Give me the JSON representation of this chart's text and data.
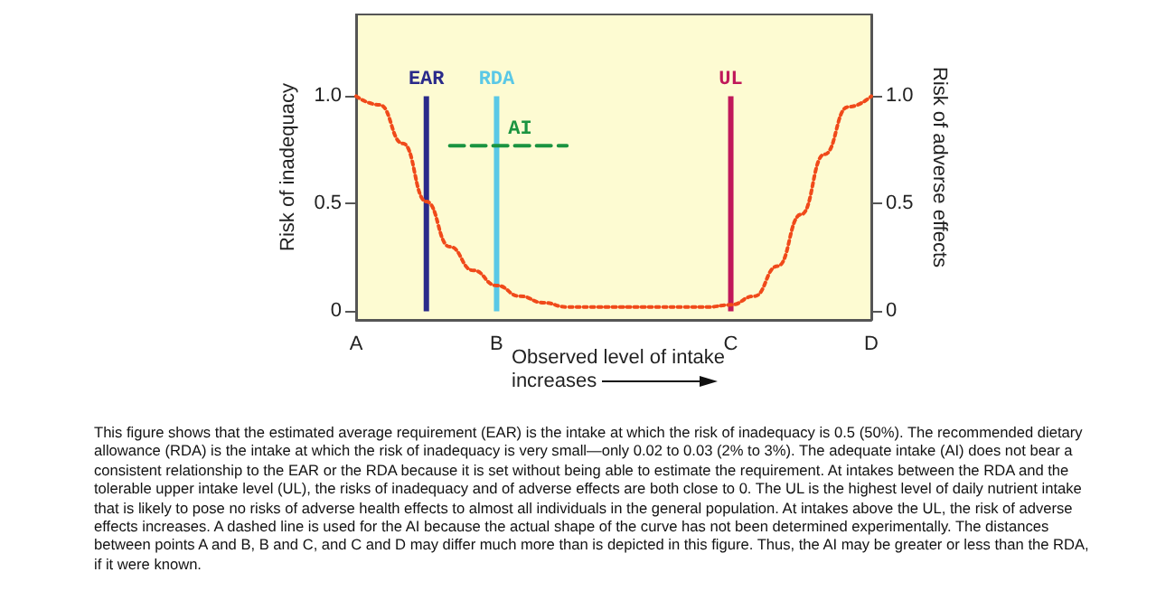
{
  "chart_data": {
    "type": "line",
    "xlabel": "Observed level of intake increases",
    "ylabel": "Risk of inadequacy",
    "y2label": "Risk of adverse effects",
    "categories": [
      "A",
      null,
      null,
      null,
      null,
      null,
      "B",
      null,
      null,
      null,
      null,
      null,
      null,
      null,
      null,
      null,
      "C",
      null,
      null,
      null,
      null,
      null,
      "D"
    ],
    "ylim": [
      -0.04,
      1.38
    ],
    "yticks": [
      0,
      0.5,
      {
        "value": 1,
        "label": "1.0"
      }
    ],
    "y2lim": [
      -0.04,
      1.38
    ],
    "y2ticks": [
      0,
      0.5,
      {
        "value": 1,
        "label": "1.0"
      }
    ],
    "grid": false,
    "marker": "none",
    "series": [
      {
        "color": "#f04a1a",
        "line_style": "dotted",
        "values": [
          1,
          0.96,
          0.78,
          0.51,
          0.3,
          0.19,
          0.12,
          0.07,
          0.04,
          0.02,
          0.02,
          0.02,
          0.02,
          0.02,
          0.02,
          0.02,
          0.03,
          0.07,
          0.21,
          0.45,
          0.73,
          0.95,
          1
        ]
      },
      {
        "type": "bar",
        "name": "EAR",
        "color": "#2a2a8a",
        "values": [
          null,
          null,
          null,
          1,
          null,
          null,
          null,
          null,
          null,
          null,
          null,
          null,
          null,
          null,
          null,
          null,
          null,
          null,
          null,
          null,
          null,
          null,
          null
        ]
      },
      {
        "type": "bar",
        "name": "RDA",
        "color": "#5ac8e6",
        "values": [
          null,
          null,
          null,
          null,
          null,
          null,
          1,
          null,
          null,
          null,
          null,
          null,
          null,
          null,
          null,
          null,
          null,
          null,
          null,
          null,
          null,
          null,
          null
        ]
      },
      {
        "name": "AI",
        "color": "#1a9440",
        "line_style": "dashed",
        "values": [
          null,
          null,
          null,
          null,
          0.77,
          0.77,
          0.77,
          0.77,
          0.77,
          0.77,
          null,
          null,
          null,
          null,
          null,
          null,
          null,
          null,
          null,
          null,
          null,
          null,
          null
        ]
      },
      {
        "type": "bar",
        "name": "UL",
        "color": "#c0185a",
        "values": [
          null,
          null,
          null,
          null,
          null,
          null,
          null,
          null,
          null,
          null,
          null,
          null,
          null,
          null,
          null,
          null,
          1,
          null,
          null,
          null,
          null,
          null,
          null
        ]
      }
    ],
    "annotations": [
      "This figure shows that the estimated average requirement (EAR) is the intake at which the risk of inadequacy is 0.5 (50%). The recommended dietary allowance (RDA) is the intake at which the risk of inadequacy is very small—only 0.02 to 0.03 (2% to 3%). The adequate intake (AI) does not bear a consistent relationship to the EAR or the RDA because it is set without being able to estimate the requirement. At intakes between the RDA and the tolerable upper intake level (UL), the risks of inadequacy and of adverse effects are both close to 0. The UL is the highest level of daily nutrient intake that is likely to pose no risks of adverse health effects to almost all individuals in the general population. At intakes above the UL, the risk of adverse effects increases. A dashed line is used for the AI because the actual shape of the curve has not been determined experimentally. The distances between points A and B, B and C, and C and D may differ much more than is depicted in this figure. Thus, the AI may be greater or less than the RDA, if it were known."
    ]
  }
}
